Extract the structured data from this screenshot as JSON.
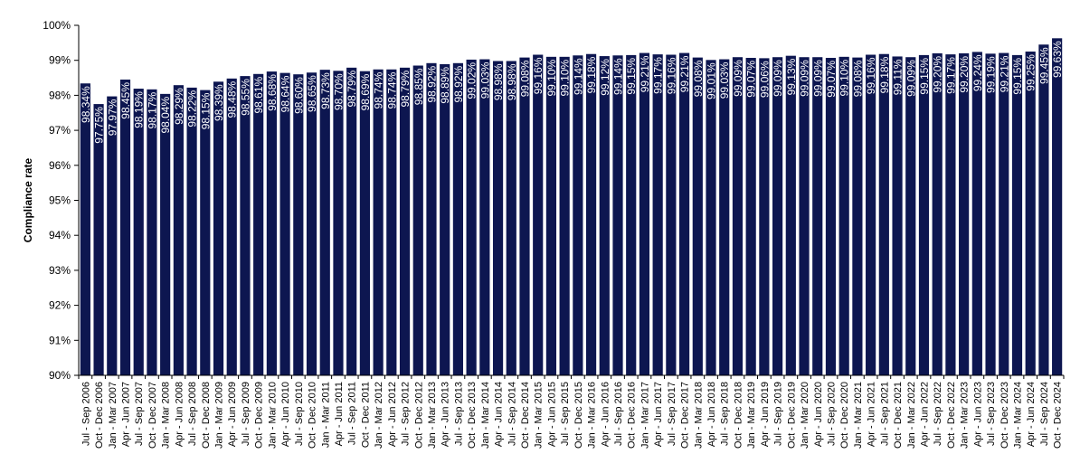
{
  "chart_data": {
    "type": "bar",
    "title": "",
    "xlabel": "",
    "ylabel": "Compliance rate",
    "ylim": [
      90,
      100
    ],
    "yticks": [
      "90%",
      "91%",
      "92%",
      "93%",
      "94%",
      "95%",
      "96%",
      "97%",
      "98%",
      "99%",
      "100%"
    ],
    "grid": false,
    "bar_color": "#0d1650",
    "label_color": "#ffffff",
    "categories": [
      "Jul - Sep 2006",
      "Oct - Dec 2006",
      "Jan - Mar 2007",
      "Apr - Jun 2007",
      "Jul - Sep 2007",
      "Oct - Dec 2007",
      "Jan - Mar 2008",
      "Apr - Jun 2008",
      "Jul - Sep 2008",
      "Oct - Dec 2008",
      "Jan - Mar 2009",
      "Apr - Jun 2009",
      "Jul - Sep 2009",
      "Oct - Dec 2009",
      "Jan - Mar 2010",
      "Apr - Jun 2010",
      "Jul - Sep 2010",
      "Oct - Dec 2010",
      "Jan - Mar 2011",
      "Apr - Jun 2011",
      "Jul - Sep 2011",
      "Oct - Dec 2011",
      "Jan - Mar 2012",
      "Apr - Jun 2012",
      "Jul - Sep 2012",
      "Oct - Dec 2012",
      "Jan - Mar 2013",
      "Apr - Jun 2013",
      "Jul - Sep 2013",
      "Oct - Dec 2013",
      "Jan - Mar 2014",
      "Apr - Jun 2014",
      "Jul - Sep 2014",
      "Oct - Dec 2014",
      "Jan - Mar 2015",
      "Apr - Jun 2015",
      "Jul - Sep 2015",
      "Oct - Dec 2015",
      "Jan - Mar 2016",
      "Apr - Jun 2016",
      "Jul - Sep 2016",
      "Oct - Dec 2016",
      "Jan - Mar 2017",
      "Apr - Jun 2017",
      "Jul - Sep 2017",
      "Oct - Dec 2017",
      "Jan - Mar 2018",
      "Apr - Jun 2018",
      "Jul - Sep 2018",
      "Oct - Dec 2018",
      "Jan - Mar 2019",
      "Apr - Jun 2019",
      "Jul - Sep 2019",
      "Oct - Dec 2019",
      "Jan - Mar 2020",
      "Apr - Jun 2020",
      "Jul - Sep 2020",
      "Oct - Dec 2020",
      "Jan - Mar 2021",
      "Apr - Jun 2021",
      "Jul - Sep 2021",
      "Oct - Dec 2021",
      "Jan - Mar 2022",
      "Apr - Jun 2022",
      "Jul - Sep 2022",
      "Oct - Dec 2022",
      "Jan - Mar 2023",
      "Apr - Jun 2023",
      "Jul - Sep 2023",
      "Oct - Dec 2023",
      "Jan - Mar 2024",
      "Apr - Jun 2024",
      "Jul - Sep 2024",
      "Oct - Dec 2024"
    ],
    "values": [
      98.34,
      97.75,
      97.97,
      98.45,
      98.19,
      98.17,
      98.04,
      98.29,
      98.22,
      98.15,
      98.39,
      98.48,
      98.55,
      98.61,
      98.68,
      98.64,
      98.6,
      98.65,
      98.73,
      98.7,
      98.79,
      98.69,
      98.74,
      98.74,
      98.79,
      98.85,
      98.92,
      98.89,
      98.92,
      99.02,
      99.03,
      98.98,
      98.98,
      99.08,
      99.16,
      99.1,
      99.1,
      99.14,
      99.18,
      99.12,
      99.14,
      99.15,
      99.21,
      99.17,
      99.16,
      99.21,
      99.08,
      99.01,
      99.03,
      99.09,
      99.07,
      99.06,
      99.09,
      99.13,
      99.09,
      99.09,
      99.07,
      99.1,
      99.08,
      99.16,
      99.18,
      99.11,
      99.09,
      99.15,
      99.2,
      99.17,
      99.2,
      99.24,
      99.19,
      99.21,
      99.15,
      99.25,
      99.45,
      99.63
    ],
    "data_labels": [
      "98.34%",
      "97.75%",
      "97.97%",
      "98.45%",
      "98.19%",
      "98.17%",
      "98.04%",
      "98.29%",
      "98.22%",
      "98.15%",
      "98.39%",
      "98.48%",
      "98.55%",
      "98.61%",
      "98.68%",
      "98.64%",
      "98.60%",
      "98.65%",
      "98.73%",
      "98.70%",
      "98.79%",
      "98.69%",
      "98.74%",
      "98.74%",
      "98.79%",
      "98.85%",
      "98.92%",
      "98.89%",
      "98.92%",
      "99.02%",
      "99.03%",
      "98.98%",
      "98.98%",
      "99.08%",
      "99.16%",
      "99.10%",
      "99.10%",
      "99.14%",
      "99.18%",
      "99.12%",
      "99.14%",
      "99.15%",
      "99.21%",
      "99.17%",
      "99.16%",
      "99.21%",
      "99.08%",
      "99.01%",
      "99.03%",
      "99.09%",
      "99.07%",
      "99.06%",
      "99.09%",
      "99.13%",
      "99.09%",
      "99.09%",
      "99.07%",
      "99.10%",
      "99.08%",
      "99.16%",
      "99.18%",
      "99.11%",
      "99.09%",
      "99.15%",
      "99.20%",
      "99.17%",
      "99.20%",
      "99.24%",
      "99.19%",
      "99.21%",
      "99.15%",
      "99.25%",
      "99.45%",
      "99.63%"
    ]
  }
}
